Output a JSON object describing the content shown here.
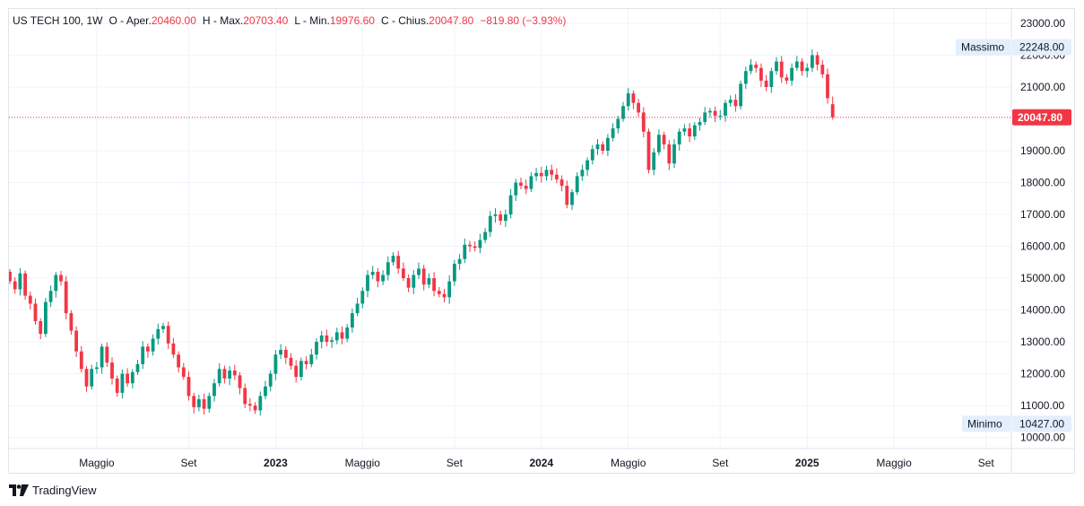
{
  "legend": {
    "symbol": "US TECH 100, 1W",
    "open_label": "O - Aper.",
    "open_value": "20460.00",
    "high_label": "H - Max.",
    "high_value": "20703.40",
    "low_label": "L - Min.",
    "low_value": "19976.60",
    "close_label": "C - Chius.",
    "close_value": "20047.80",
    "change_value": "−819.80 (−3.93%)"
  },
  "branding": {
    "logo_text": "TradingView"
  },
  "colors": {
    "up": "#089981",
    "down": "#f23645",
    "grid": "#f0f3fa",
    "axis_text": "#131722",
    "tag_bg": "#e3effd"
  },
  "chart_data": {
    "type": "candlestick",
    "title": "US TECH 100, 1W",
    "ylim": [
      9650,
      23450
    ],
    "grid": true,
    "y_ticks": [
      "23000.00",
      "22000.00",
      "21000.00",
      "20000.00",
      "19000.00",
      "18000.00",
      "17000.00",
      "16000.00",
      "15000.00",
      "14000.00",
      "13000.00",
      "12000.00",
      "11000.00",
      "10000.00"
    ],
    "x_ticks": [
      {
        "label": "Maggio",
        "year": false,
        "week": 17
      },
      {
        "label": "Set",
        "year": false,
        "week": 35
      },
      {
        "label": "2023",
        "year": true,
        "week": 52
      },
      {
        "label": "Maggio",
        "year": false,
        "week": 69
      },
      {
        "label": "Set",
        "year": false,
        "week": 87
      },
      {
        "label": "2024",
        "year": true,
        "week": 104
      },
      {
        "label": "Maggio",
        "year": false,
        "week": 121
      },
      {
        "label": "Set",
        "year": false,
        "week": 139
      },
      {
        "label": "2025",
        "year": true,
        "week": 156
      },
      {
        "label": "Maggio",
        "year": false,
        "week": 173
      },
      {
        "label": "Set",
        "year": false,
        "week": 191
      }
    ],
    "closes": [
      14900,
      14650,
      15150,
      14450,
      14200,
      13650,
      13250,
      14250,
      14600,
      15100,
      14900,
      13900,
      13350,
      12700,
      12150,
      11600,
      12150,
      12200,
      12850,
      12350,
      11850,
      11400,
      12000,
      11700,
      12050,
      12300,
      12850,
      12700,
      13100,
      13400,
      13500,
      12950,
      12600,
      12200,
      11900,
      11300,
      10950,
      11200,
      10900,
      11300,
      11700,
      12150,
      11850,
      12100,
      11950,
      11550,
      11050,
      11000,
      10850,
      11300,
      11600,
      12000,
      12600,
      12750,
      12500,
      12250,
      11900,
      12400,
      12300,
      12600,
      13000,
      13200,
      13000,
      13050,
      13300,
      13100,
      13450,
      13900,
      14200,
      14600,
      15100,
      15200,
      14900,
      15100,
      15500,
      15700,
      15300,
      15000,
      14700,
      15100,
      15300,
      14800,
      15000,
      14600,
      14500,
      14400,
      14900,
      15450,
      15600,
      16050,
      16000,
      15950,
      16200,
      16450,
      16950,
      17000,
      16800,
      17000,
      17600,
      18000,
      17900,
      17800,
      18200,
      18300,
      18200,
      18400,
      18250,
      18100,
      17900,
      17300,
      17700,
      18200,
      18400,
      18700,
      19050,
      19200,
      19000,
      19400,
      19700,
      20000,
      20400,
      20800,
      20500,
      20200,
      19600,
      18400,
      18950,
      19500,
      19200,
      18600,
      19200,
      19600,
      19700,
      19450,
      19800,
      19900,
      20200,
      20250,
      20100,
      20100,
      20500,
      20600,
      20400,
      21100,
      21500,
      21700,
      21600,
      21200,
      21000,
      21500,
      21800,
      21300,
      21200,
      21600,
      21800,
      21500,
      21600,
      22000,
      21700,
      21400,
      20650,
      20047.8
    ],
    "extremes": {
      "max_label": "Massimo",
      "max_value": "22248.00",
      "min_label": "Minimo",
      "min_value": "10427.00"
    },
    "last_price": {
      "value": "20047.80"
    }
  }
}
